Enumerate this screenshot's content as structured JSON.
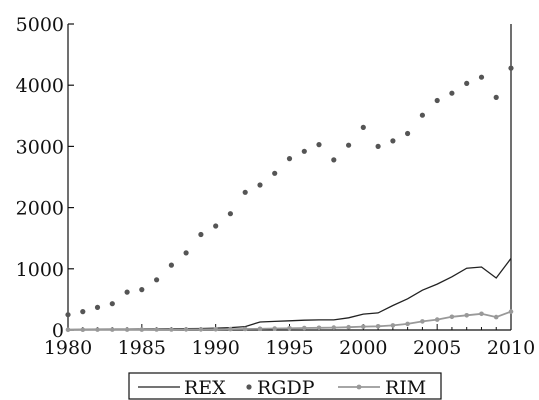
{
  "chart_data": {
    "type": "line",
    "xlim": [
      1980,
      2010
    ],
    "ylim": [
      0,
      5000
    ],
    "xticks": [
      1980,
      1985,
      1990,
      1995,
      2000,
      2005,
      2010
    ],
    "yticks": [
      0,
      1000,
      2000,
      3000,
      4000,
      5000
    ],
    "x": [
      1980,
      1981,
      1982,
      1983,
      1984,
      1985,
      1986,
      1987,
      1988,
      1989,
      1990,
      1991,
      1992,
      1993,
      1994,
      1995,
      1996,
      1997,
      1998,
      1999,
      2000,
      2001,
      2002,
      2003,
      2004,
      2005,
      2006,
      2007,
      2008,
      2009,
      2010
    ],
    "legend_position": "bottom",
    "grid": false,
    "series": [
      {
        "name": "REX",
        "style": "line",
        "color": "#222222",
        "values": [
          8,
          10,
          12,
          14,
          15,
          16,
          18,
          20,
          22,
          25,
          30,
          40,
          55,
          130,
          140,
          150,
          160,
          165,
          165,
          200,
          260,
          280,
          400,
          510,
          650,
          750,
          870,
          1010,
          1030,
          850,
          1170
        ]
      },
      {
        "name": "RGDP",
        "style": "dots",
        "color": "#555555",
        "values": [
          250,
          300,
          370,
          430,
          620,
          660,
          820,
          1060,
          1260,
          1560,
          1700,
          1900,
          2250,
          2370,
          2560,
          2800,
          2920,
          3030,
          2780,
          3020,
          3310,
          3000,
          3090,
          3210,
          3510,
          3750,
          3870,
          4030,
          4130,
          3800,
          4280
        ]
      },
      {
        "name": "RIM",
        "style": "line-markers",
        "color": "#999999",
        "values": [
          4,
          5,
          6,
          6,
          7,
          7,
          8,
          8,
          9,
          10,
          12,
          14,
          16,
          20,
          24,
          28,
          32,
          36,
          40,
          45,
          55,
          60,
          75,
          100,
          140,
          170,
          215,
          240,
          265,
          210,
          300
        ]
      }
    ]
  }
}
